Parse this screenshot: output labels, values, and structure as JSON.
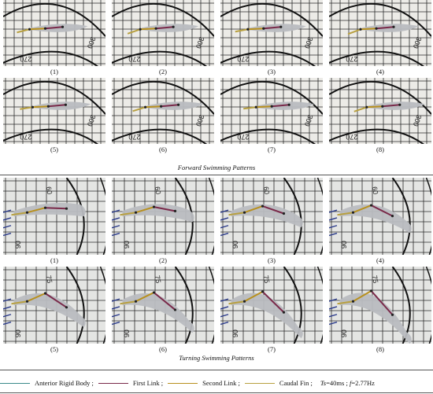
{
  "panels": [
    {
      "caption": "Forward Swimming Patterns",
      "frames": [
        "(1)",
        "(2)",
        "(3)",
        "(4)",
        "(5)",
        "(6)",
        "(7)",
        "(8)"
      ],
      "scale_labels": [
        "270",
        "300"
      ]
    },
    {
      "caption": "Turning Swimming Patterns",
      "frames": [
        "(1)",
        "(2)",
        "(3)",
        "(4)",
        "(5)",
        "(6)",
        "(7)",
        "(8)"
      ],
      "scale_labels": [
        "60",
        "90",
        "75"
      ]
    }
  ],
  "legend": [
    {
      "label": "Anterior Rigid Body ;",
      "color": "#3a8a8a"
    },
    {
      "label": "First Link ;",
      "color": "#7a2a4a"
    },
    {
      "label": "Second Link ;",
      "color": "#b8901e"
    },
    {
      "label": "Caudal Fin ;",
      "color": "#b8a040"
    }
  ],
  "params": {
    "ts_symbol": "Ts",
    "ts_value": "=40ms ;",
    "f_symbol": "f",
    "f_value": "=2.77Hz"
  },
  "colors": {
    "fish_body": "#b9bcc0",
    "grid_line": "#2a2a2a",
    "link_marker": "#c84040"
  }
}
